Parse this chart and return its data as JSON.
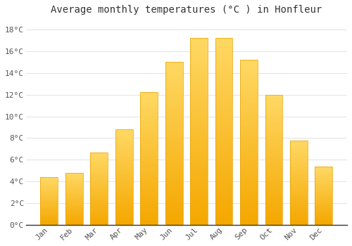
{
  "title": "Average monthly temperatures (°C ) in Honfleur",
  "months": [
    "Jan",
    "Feb",
    "Mar",
    "Apr",
    "May",
    "Jun",
    "Jul",
    "Aug",
    "Sep",
    "Oct",
    "Nov",
    "Dec"
  ],
  "values": [
    4.4,
    4.8,
    6.7,
    8.8,
    12.2,
    15.0,
    17.2,
    17.2,
    15.2,
    12.0,
    7.8,
    5.4
  ],
  "bar_color_bottom": "#F5A800",
  "bar_color_top": "#FFD966",
  "background_color": "#FFFFFF",
  "grid_color": "#DDDDDD",
  "text_color": "#555555",
  "spine_color": "#333333",
  "ylim": [
    0,
    19
  ],
  "yticks": [
    0,
    2,
    4,
    6,
    8,
    10,
    12,
    14,
    16,
    18
  ],
  "title_fontsize": 10,
  "tick_fontsize": 8,
  "figsize": [
    5.0,
    3.5
  ],
  "dpi": 100
}
